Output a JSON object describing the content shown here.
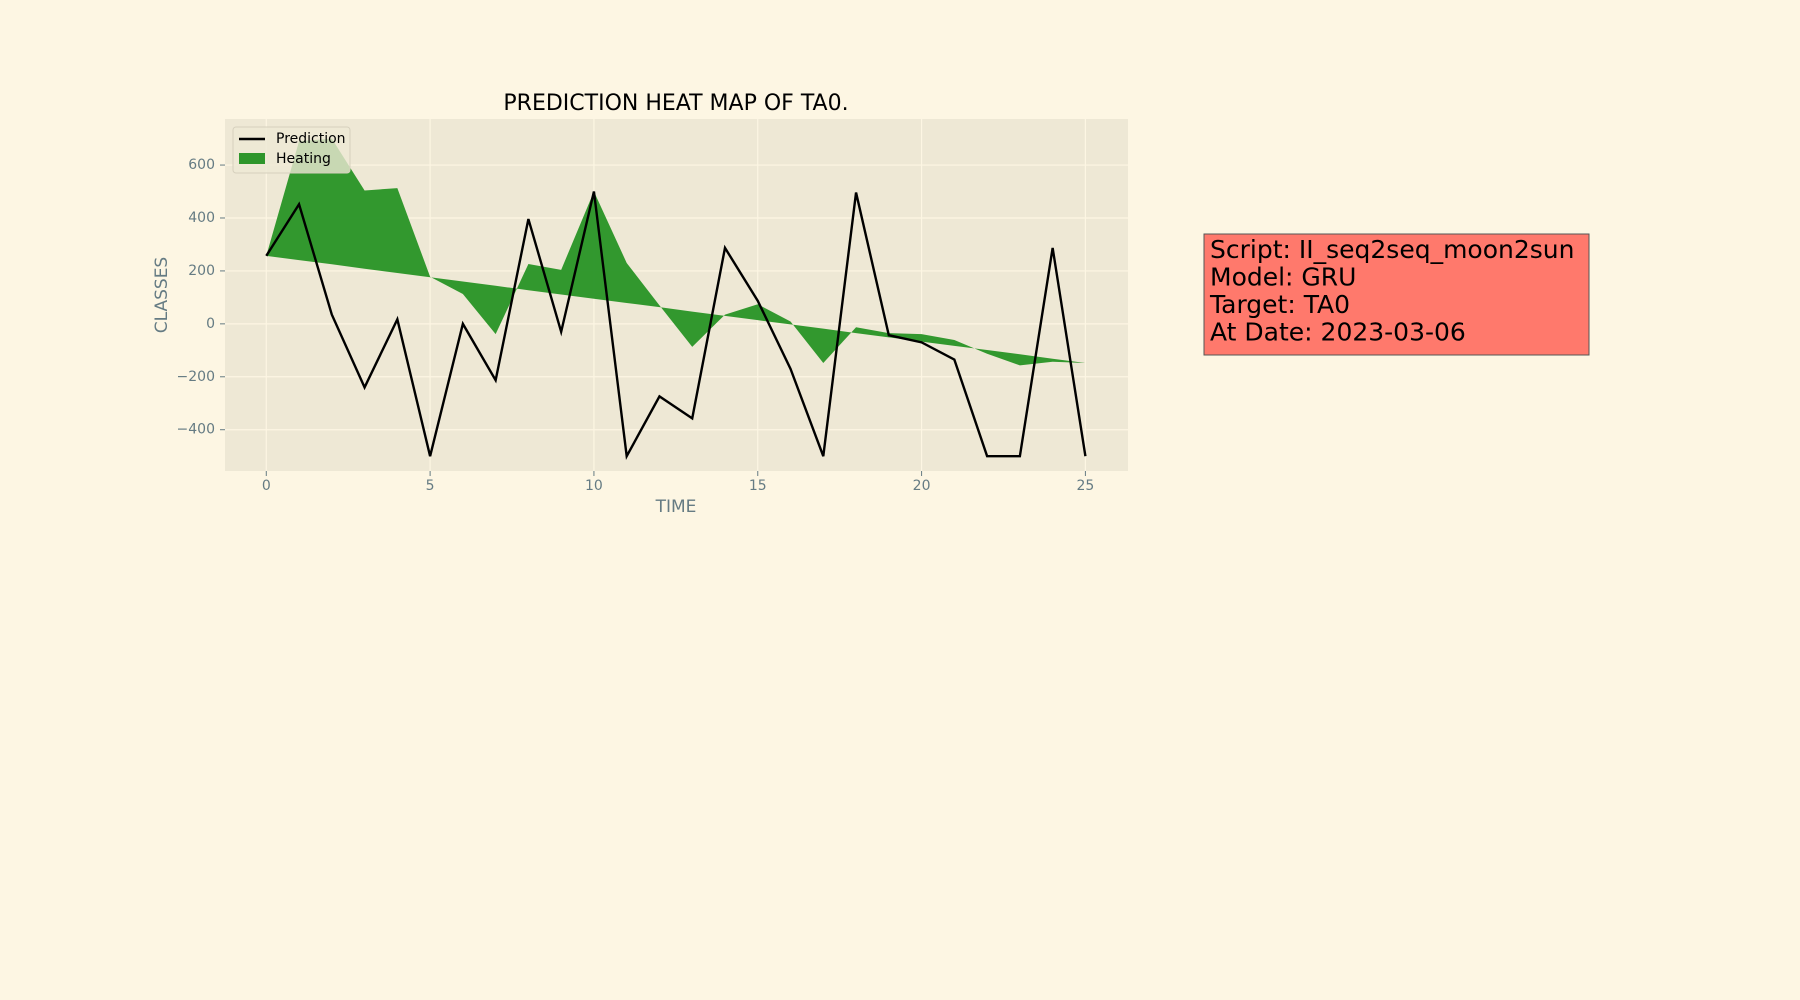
{
  "chart_data": {
    "type": "line",
    "title": "PREDICTION HEAT MAP OF TA0.",
    "xlabel": "TIME",
    "ylabel": "CLASSES",
    "x": [
      0,
      1,
      2,
      3,
      4,
      5,
      6,
      7,
      8,
      9,
      10,
      11,
      12,
      13,
      14,
      15,
      16,
      17,
      18,
      19,
      20,
      21,
      22,
      23,
      24,
      25
    ],
    "series": [
      {
        "name": "Prediction",
        "color": "#000000",
        "values": [
          257,
          452,
          35,
          -240,
          17,
          -500,
          0,
          -213,
          396,
          -30,
          500,
          -500,
          -274,
          -357,
          287,
          87,
          -170,
          -500,
          496,
          -43,
          -70,
          -135,
          -500,
          -500,
          287,
          -500
        ]
      },
      {
        "name": "Heating",
        "color": "#2e962b",
        "fill": true,
        "values": [
          257,
          690,
          700,
          504,
          513,
          178,
          113,
          -39,
          226,
          204,
          500,
          230,
          70,
          -87,
          35,
          74,
          9,
          -148,
          -13,
          -35,
          -39,
          -61,
          -113,
          -157,
          -143,
          -148
        ],
        "base": [
          257,
          241,
          225,
          208,
          192,
          176,
          160,
          144,
          127,
          111,
          95,
          79,
          63,
          46,
          30,
          14,
          -2,
          -18,
          -35,
          -51,
          -67,
          -83,
          -99,
          -115,
          -132,
          -148
        ]
      }
    ],
    "xlim": [
      -1.26,
      26.3
    ],
    "ylim": [
      -556,
      774
    ],
    "xticks": [
      0,
      5,
      10,
      15,
      20,
      25
    ],
    "yticks": [
      {
        "value": -400,
        "label": "−400"
      },
      {
        "value": -200,
        "label": "−200"
      },
      0,
      200,
      400,
      600
    ],
    "grid": true,
    "legend": "upper left",
    "annotation": {
      "lines": [
        "Script: II_seq2seq_moon2sun",
        "Model: GRU",
        "Target: TA0",
        "At Date: 2023-03-06"
      ],
      "color": "#ff796c"
    }
  }
}
